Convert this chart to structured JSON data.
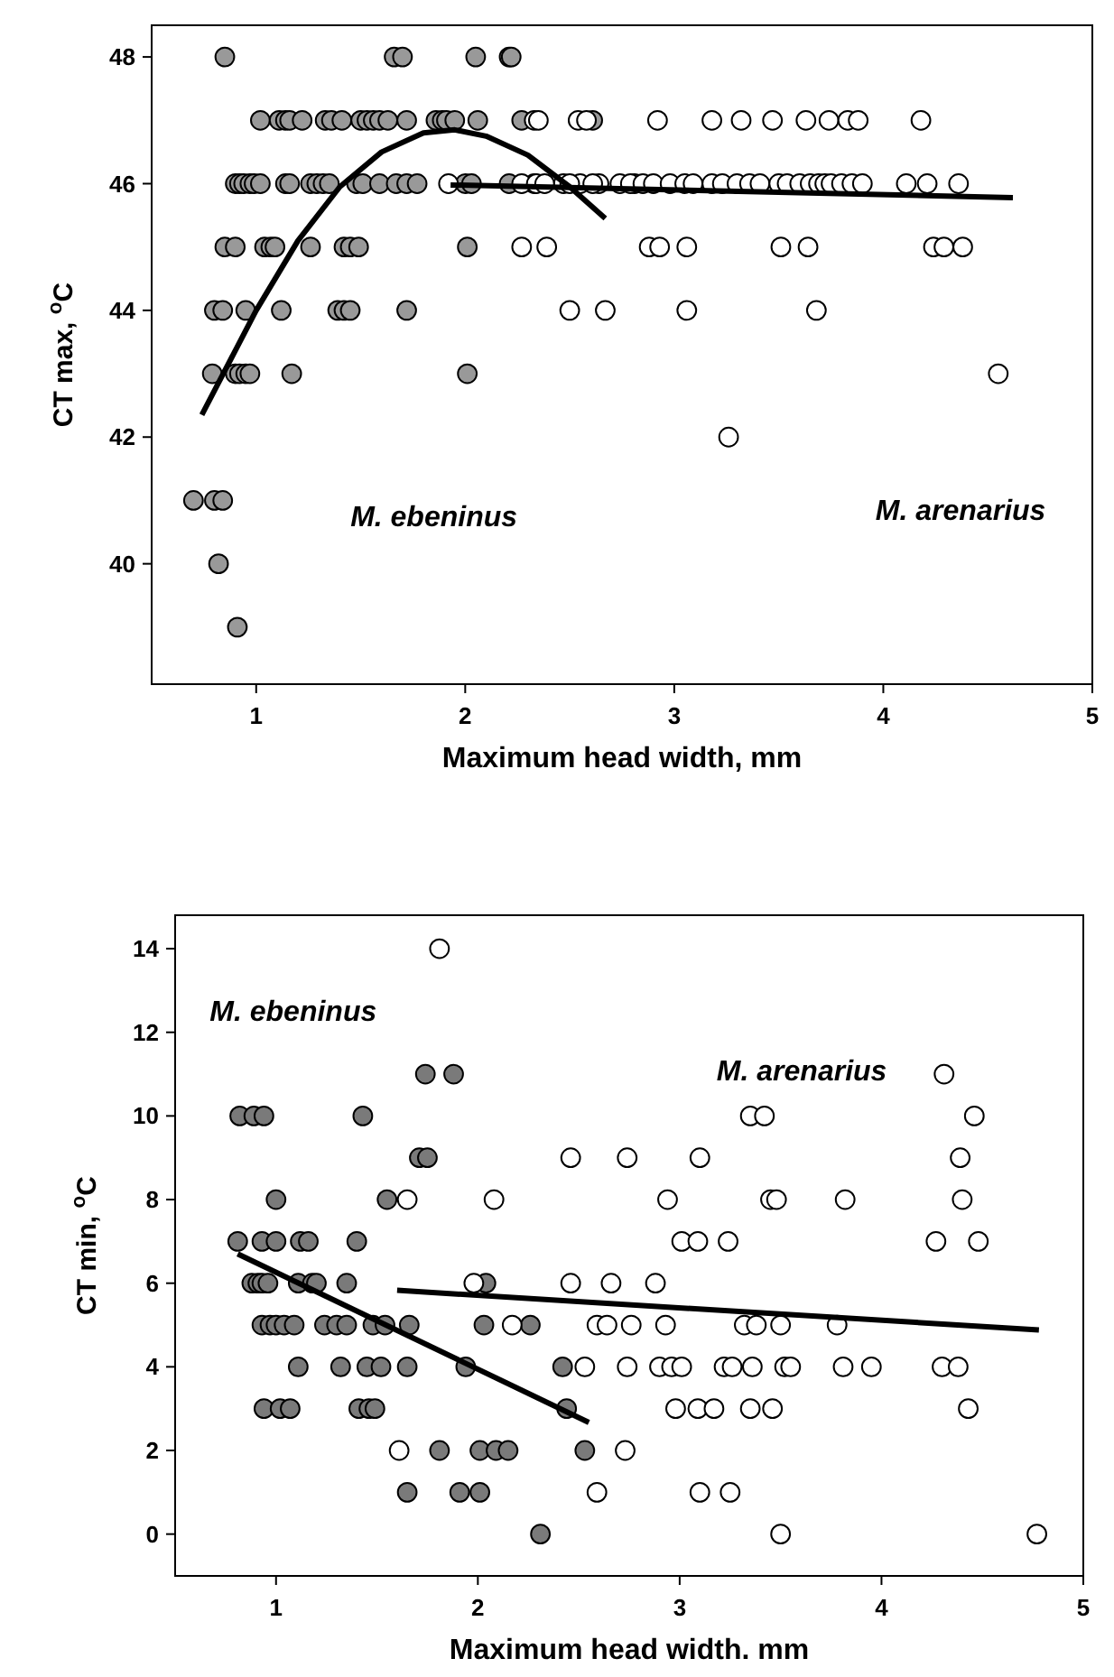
{
  "chart_data": [
    {
      "type": "scatter",
      "xlabel": "Maximum head width, mm",
      "ylabel": "CT max, $^{o}$C",
      "xlim": [
        0.5,
        5.0
      ],
      "ylim": [
        38.1,
        48.5
      ],
      "xticks": [
        1,
        2,
        3,
        4,
        5
      ],
      "yticks": [
        40,
        42,
        44,
        46,
        48
      ],
      "marker": "circle",
      "series": [
        {
          "name": "M. ebeninus",
          "color": "#999999",
          "x": [
            0.85,
            1.66,
            1.7,
            2.05,
            2.21,
            2.22,
            1.02,
            1.11,
            1.14,
            1.16,
            1.22,
            1.33,
            1.36,
            1.41,
            1.5,
            1.53,
            1.56,
            1.59,
            1.63,
            1.72,
            1.86,
            1.89,
            1.91,
            1.95,
            2.06,
            2.27,
            2.61,
            0.9,
            0.92,
            0.94,
            0.97,
            0.99,
            1.02,
            1.14,
            1.16,
            1.26,
            1.29,
            1.32,
            1.35,
            1.48,
            1.51,
            1.59,
            1.67,
            1.72,
            1.77,
            2.0,
            2.03,
            2.21,
            2.33,
            0.85,
            0.9,
            1.04,
            1.07,
            1.09,
            1.26,
            1.42,
            1.45,
            1.49,
            2.01,
            0.8,
            0.84,
            0.95,
            1.12,
            1.39,
            1.42,
            1.45,
            1.72,
            0.79,
            0.9,
            0.92,
            0.95,
            0.97,
            1.17,
            2.01,
            0.7,
            0.8,
            0.84,
            0.82,
            0.91
          ],
          "values": [
            48,
            48,
            48,
            48,
            48,
            48,
            47,
            47,
            47,
            47,
            47,
            47,
            47,
            47,
            47,
            47,
            47,
            47,
            47,
            47,
            47,
            47,
            47,
            47,
            47,
            47,
            47,
            46,
            46,
            46,
            46,
            46,
            46,
            46,
            46,
            46,
            46,
            46,
            46,
            46,
            46,
            46,
            46,
            46,
            46,
            46,
            46,
            46,
            46,
            45,
            45,
            45,
            45,
            45,
            45,
            45,
            45,
            45,
            45,
            44,
            44,
            44,
            44,
            44,
            44,
            44,
            44,
            43,
            43,
            43,
            43,
            43,
            43,
            43,
            41,
            41,
            41,
            40,
            39
          ]
        },
        {
          "name": "M. arenarius",
          "color": "#ffffff",
          "x": [
            2.33,
            2.35,
            2.54,
            2.58,
            2.92,
            3.18,
            3.32,
            3.47,
            3.63,
            3.74,
            3.83,
            3.88,
            4.18,
            1.92,
            2.27,
            2.34,
            2.47,
            2.55,
            2.64,
            2.81,
            2.38,
            2.5,
            2.61,
            2.74,
            2.79,
            2.85,
            2.9,
            2.98,
            3.05,
            3.09,
            3.18,
            3.23,
            3.3,
            3.36,
            3.41,
            3.5,
            3.54,
            3.6,
            3.65,
            3.69,
            3.72,
            3.75,
            3.8,
            3.85,
            3.9,
            4.11,
            4.21,
            4.36,
            2.27,
            2.39,
            2.88,
            2.93,
            3.06,
            3.51,
            3.64,
            4.24,
            4.29,
            4.38,
            2.5,
            2.67,
            3.06,
            3.68,
            4.55,
            3.26
          ],
          "values": [
            47,
            47,
            47,
            47,
            47,
            47,
            47,
            47,
            47,
            47,
            47,
            47,
            47,
            46,
            46,
            46,
            46,
            46,
            46,
            46,
            46,
            46,
            46,
            46,
            46,
            46,
            46,
            46,
            46,
            46,
            46,
            46,
            46,
            46,
            46,
            46,
            46,
            46,
            46,
            46,
            46,
            46,
            46,
            46,
            46,
            46,
            46,
            46,
            45,
            45,
            45,
            45,
            45,
            45,
            45,
            45,
            45,
            45,
            44,
            44,
            44,
            44,
            43,
            42
          ]
        },
        {
          "type": "line",
          "marker": "none",
          "color": "#000000",
          "x": [
            0.74,
            1.0,
            1.2,
            1.4,
            1.6,
            1.8,
            1.95,
            2.1,
            2.3,
            2.5,
            2.67
          ],
          "values": [
            42.35,
            44.0,
            45.1,
            45.95,
            46.5,
            46.8,
            46.85,
            46.75,
            46.45,
            45.95,
            45.45
          ]
        },
        {
          "type": "line",
          "marker": "none",
          "color": "#000000",
          "x": [
            1.93,
            4.62
          ],
          "values": [
            45.98,
            45.78
          ]
        }
      ]
    },
    {
      "type": "scatter",
      "xlabel": "Maximum head width. mm",
      "ylabel": "CT min, $^{o}$C",
      "xlim": [
        0.5,
        5.0
      ],
      "ylim": [
        -1,
        14.8
      ],
      "xticks": [
        1,
        2,
        3,
        4,
        5
      ],
      "yticks": [
        0,
        2,
        4,
        6,
        8,
        10,
        12,
        14
      ],
      "marker": "circle",
      "series": [
        {
          "name": "M. ebeninus",
          "color": "#7a7a7a",
          "x": [
            0.82,
            0.89,
            0.94,
            1.43,
            1.74,
            1.88,
            1.71,
            1.75,
            1.0,
            1.55,
            0.81,
            0.93,
            1.0,
            1.12,
            1.16,
            1.4,
            0.88,
            0.91,
            0.93,
            0.96,
            1.11,
            1.18,
            1.2,
            1.35,
            2.04,
            0.93,
            0.97,
            1.0,
            1.04,
            1.09,
            1.24,
            1.3,
            1.35,
            1.48,
            1.54,
            1.66,
            2.03,
            2.26,
            1.11,
            1.32,
            1.45,
            1.52,
            1.65,
            1.94,
            2.42,
            0.94,
            1.02,
            1.07,
            1.41,
            1.46,
            1.49,
            2.44,
            1.81,
            2.01,
            2.09,
            2.15,
            2.53,
            1.65,
            1.91,
            2.01,
            2.31
          ],
          "values": [
            10,
            10,
            10,
            10,
            11,
            11,
            9,
            9,
            8,
            8,
            7,
            7,
            7,
            7,
            7,
            7,
            6,
            6,
            6,
            6,
            6,
            6,
            6,
            6,
            6,
            5,
            5,
            5,
            5,
            5,
            5,
            5,
            5,
            5,
            5,
            5,
            5,
            5,
            4,
            4,
            4,
            4,
            4,
            4,
            4,
            3,
            3,
            3,
            3,
            3,
            3,
            3,
            2,
            2,
            2,
            2,
            2,
            1,
            1,
            1,
            0
          ]
        },
        {
          "name": "M. arenarius",
          "color": "#ffffff",
          "x": [
            1.81,
            4.31,
            3.35,
            3.42,
            4.46,
            2.46,
            2.74,
            3.1,
            4.39,
            1.65,
            2.08,
            2.94,
            3.45,
            3.48,
            3.82,
            4.4,
            3.01,
            3.09,
            3.24,
            4.27,
            4.48,
            1.98,
            2.46,
            2.66,
            2.88,
            2.17,
            2.59,
            2.64,
            2.76,
            2.93,
            3.32,
            3.38,
            3.5,
            3.78,
            2.53,
            2.74,
            2.9,
            2.96,
            3.01,
            3.22,
            3.26,
            3.36,
            3.52,
            3.55,
            3.81,
            3.95,
            4.3,
            4.38,
            2.98,
            3.09,
            3.17,
            3.35,
            3.46,
            4.43,
            1.61,
            2.73,
            2.59,
            3.1,
            3.25,
            3.5,
            4.77
          ],
          "values": [
            14,
            11,
            10,
            10,
            10,
            9,
            9,
            9,
            9,
            8,
            8,
            8,
            8,
            8,
            8,
            8,
            7,
            7,
            7,
            7,
            7,
            6,
            6,
            6,
            6,
            5,
            5,
            5,
            5,
            5,
            5,
            5,
            5,
            5,
            4,
            4,
            4,
            4,
            4,
            4,
            4,
            4,
            4,
            4,
            4,
            4,
            4,
            4,
            3,
            3,
            3,
            3,
            3,
            3,
            2,
            2,
            1,
            1,
            1,
            0,
            0
          ]
        },
        {
          "type": "line",
          "marker": "none",
          "color": "#000000",
          "x": [
            0.81,
            2.55
          ],
          "values": [
            6.7,
            2.67
          ]
        },
        {
          "type": "line",
          "marker": "none",
          "color": "#000000",
          "x": [
            1.6,
            4.78
          ],
          "values": [
            5.83,
            4.88
          ]
        }
      ]
    }
  ]
}
